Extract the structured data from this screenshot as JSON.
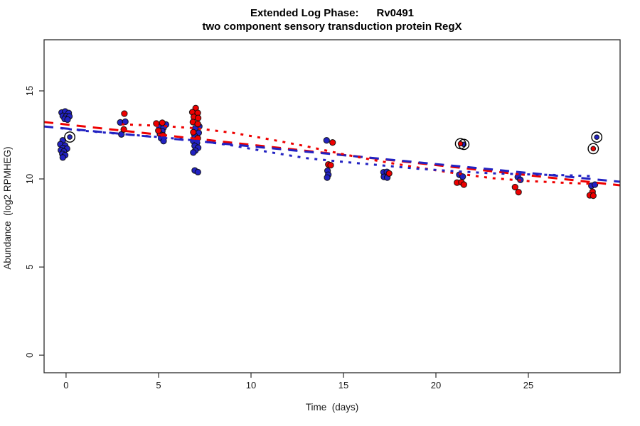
{
  "title": {
    "line1": "Extended Log Phase:      Rv0491",
    "line2": "two component sensory transduction protein RegX"
  },
  "axes": {
    "xlabel": "Time  (days)",
    "ylabel": "Abundance  (log2 RPMHEG)"
  },
  "colors": {
    "red": "#ee0000",
    "blue": "#2222c2",
    "point_edge": "#0a0a0a",
    "axis": "#2b2b2b",
    "circle_mark": "#000000"
  },
  "chart_data": {
    "type": "scatter",
    "title": "Extended Log Phase:      Rv0491",
    "subtitle": "two component sensory transduction protein RegX",
    "xlabel": "Time  (days)",
    "ylabel": "Abundance  (log2 RPMHEG)",
    "xlim": [
      -1.19,
      29.96
    ],
    "ylim": [
      -1.0,
      17.9
    ],
    "x_ticks": [
      0,
      5,
      10,
      15,
      20,
      25
    ],
    "y_ticks": [
      0,
      5,
      10,
      15
    ],
    "grid": false,
    "legend": "none",
    "series": [
      {
        "name": "replicate-blue",
        "color": "#2222c2",
        "points": [
          [
            -0.24,
            13.77
          ],
          [
            -0.05,
            13.83
          ],
          [
            0.14,
            13.74
          ],
          [
            -0.18,
            13.58
          ],
          [
            0.01,
            13.56
          ],
          [
            0.18,
            13.55
          ],
          [
            -0.08,
            13.41
          ],
          [
            0.08,
            13.37
          ],
          [
            -0.18,
            12.19
          ],
          [
            -0.31,
            11.97
          ],
          [
            -0.05,
            11.9
          ],
          [
            -0.18,
            11.76
          ],
          [
            0.05,
            11.72
          ],
          [
            -0.28,
            11.63
          ],
          [
            -0.12,
            11.56
          ],
          [
            -0.2,
            11.42
          ],
          [
            -0.05,
            11.35
          ],
          [
            -0.18,
            11.22
          ],
          [
            2.93,
            13.21
          ],
          [
            3.2,
            13.25
          ],
          [
            2.99,
            12.53
          ],
          [
            5.4,
            13.09
          ],
          [
            5.04,
            12.98
          ],
          [
            5.27,
            12.91
          ],
          [
            5.2,
            12.71
          ],
          [
            5.08,
            12.55
          ],
          [
            5.14,
            12.31
          ],
          [
            5.27,
            12.15
          ],
          [
            7.2,
            12.98
          ],
          [
            6.99,
            12.88
          ],
          [
            7.17,
            12.62
          ],
          [
            6.95,
            12.45
          ],
          [
            6.88,
            12.15
          ],
          [
            7.08,
            12.05
          ],
          [
            6.95,
            11.88
          ],
          [
            7.14,
            11.77
          ],
          [
            6.99,
            11.61
          ],
          [
            6.88,
            11.5
          ],
          [
            6.96,
            10.48
          ],
          [
            7.13,
            10.39
          ],
          [
            14.09,
            12.19
          ],
          [
            14.14,
            10.46
          ],
          [
            14.18,
            10.24
          ],
          [
            14.12,
            10.08
          ],
          [
            17.17,
            10.38
          ],
          [
            17.35,
            10.4
          ],
          [
            17.19,
            10.12
          ],
          [
            17.37,
            10.08
          ],
          [
            21.27,
            10.24
          ],
          [
            21.45,
            10.13
          ],
          [
            24.43,
            10.11
          ],
          [
            24.57,
            9.95
          ],
          [
            28.41,
            9.61
          ],
          [
            28.6,
            9.68
          ]
        ],
        "circled_points": [
          [
            0.2,
            12.38
          ],
          [
            21.51,
            11.96
          ],
          [
            28.7,
            12.37
          ]
        ]
      },
      {
        "name": "replicate-red",
        "color": "#ee0000",
        "points": [
          [
            3.15,
            13.71
          ],
          [
            3.12,
            12.81
          ],
          [
            4.88,
            13.15
          ],
          [
            5.2,
            13.19
          ],
          [
            4.99,
            12.74
          ],
          [
            5.24,
            12.47
          ],
          [
            7.01,
            14.02
          ],
          [
            6.83,
            13.79
          ],
          [
            7.12,
            13.75
          ],
          [
            6.91,
            13.52
          ],
          [
            7.14,
            13.46
          ],
          [
            6.86,
            13.23
          ],
          [
            7.12,
            13.12
          ],
          [
            6.88,
            12.65
          ],
          [
            7.12,
            12.31
          ],
          [
            14.41,
            12.07
          ],
          [
            14.18,
            10.82
          ],
          [
            14.31,
            10.78
          ],
          [
            17.47,
            10.31
          ],
          [
            21.14,
            9.79
          ],
          [
            21.38,
            9.81
          ],
          [
            21.51,
            9.68
          ],
          [
            24.28,
            9.54
          ],
          [
            24.47,
            9.25
          ],
          [
            28.47,
            9.27
          ],
          [
            28.32,
            9.07
          ],
          [
            28.51,
            9.05
          ]
        ],
        "circled_points": [
          [
            21.33,
            12.0
          ],
          [
            28.51,
            11.72
          ]
        ]
      }
    ],
    "trend_lines": [
      {
        "name": "red-linear-fit",
        "color": "#ee0000",
        "style": "dashed",
        "points": [
          [
            -1.19,
            13.23
          ],
          [
            29.96,
            9.64
          ]
        ]
      },
      {
        "name": "blue-linear-fit",
        "color": "#2222c2",
        "style": "dashed",
        "points": [
          [
            -1.19,
            12.98
          ],
          [
            29.96,
            9.84
          ]
        ]
      },
      {
        "name": "red-loess-fit",
        "color": "#ee0000",
        "style": "dotted",
        "points": [
          [
            3,
            13.1
          ],
          [
            5,
            13.02
          ],
          [
            7,
            12.88
          ],
          [
            9,
            12.62
          ],
          [
            11,
            12.25
          ],
          [
            13,
            11.85
          ],
          [
            15,
            11.4
          ],
          [
            17,
            11.0
          ],
          [
            19,
            10.65
          ],
          [
            21,
            10.33
          ],
          [
            23,
            10.05
          ],
          [
            25,
            9.88
          ],
          [
            27,
            9.78
          ],
          [
            28.5,
            9.72
          ]
        ]
      },
      {
        "name": "blue-loess-fit",
        "color": "#2222c2",
        "style": "dotted",
        "points": [
          [
            -0.3,
            12.88
          ],
          [
            1,
            12.73
          ],
          [
            3,
            12.55
          ],
          [
            5,
            12.38
          ],
          [
            7,
            12.18
          ],
          [
            9,
            11.9
          ],
          [
            11,
            11.52
          ],
          [
            13,
            11.18
          ],
          [
            15,
            10.97
          ],
          [
            17,
            10.78
          ],
          [
            19,
            10.58
          ],
          [
            21,
            10.44
          ],
          [
            23,
            10.32
          ],
          [
            25,
            10.26
          ],
          [
            27,
            10.21
          ],
          [
            28.6,
            10.15
          ]
        ]
      }
    ]
  }
}
